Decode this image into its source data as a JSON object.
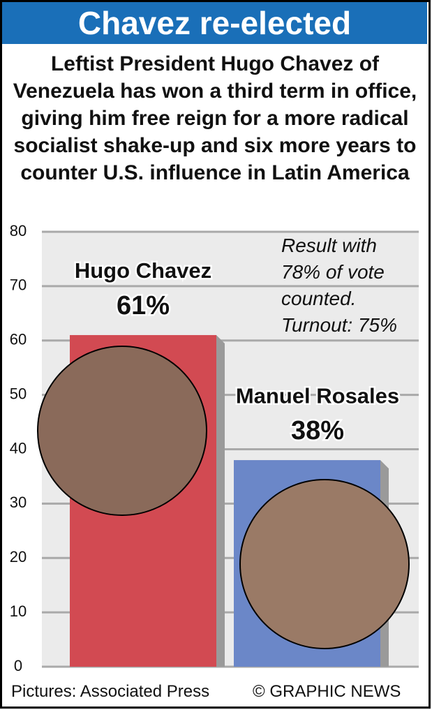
{
  "title": "Chavez re-elected",
  "subtitle": "Leftist President Hugo Chavez of Venezuela has won a third term in office, giving him free reign for a more radical socialist shake-up and six more years to counter U.S. influence in Latin America",
  "chart_data": {
    "type": "bar",
    "categories": [
      "Hugo Chavez",
      "Manuel Rosales"
    ],
    "values": [
      61,
      38
    ],
    "value_labels": [
      "61%",
      "38%"
    ],
    "colors": [
      "#d24a52",
      "#6b87c8"
    ],
    "ylim": [
      0,
      80
    ],
    "yticks": [
      0,
      10,
      20,
      30,
      40,
      50,
      60,
      70,
      80
    ],
    "grid": true,
    "note": "Result with 78% of vote counted. Turnout: 75%"
  },
  "footer": {
    "credit": "Pictures: Associated Press",
    "source": "© GRAPHIC NEWS"
  }
}
